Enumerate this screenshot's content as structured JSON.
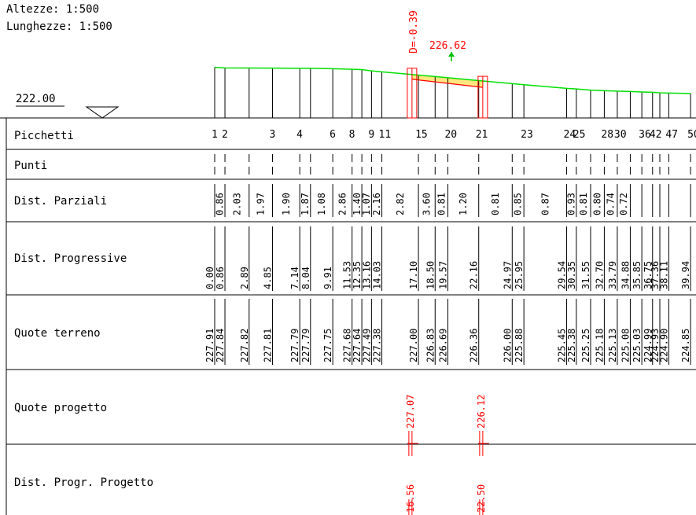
{
  "header": {
    "scale_heights": "Altezze:  1:500",
    "scale_lengths": "Lunghezze: 1:500",
    "datum": "222.00"
  },
  "design": {
    "d_label": "D=-0.39",
    "top_label": "226.62",
    "color": "#ff0000"
  },
  "colors": {
    "ground_line": "#00e000",
    "fill": "#ffe680",
    "lines": "#000000"
  },
  "rows": [
    "Picchetti",
    "Punti",
    "Dist. Parziali",
    "Dist. Progressive",
    "Quote terreno",
    "Quote progetto",
    "Dist. Progr. Progetto"
  ],
  "stations": [
    {
      "prog": "0.00",
      "quota": "227.91"
    },
    {
      "prog": "0.86",
      "quota": "227.84"
    },
    {
      "prog": "2.89",
      "quota": "227.82"
    },
    {
      "prog": "4.85",
      "quota": "227.81"
    },
    {
      "prog": "7.14",
      "quota": "227.79"
    },
    {
      "prog": "8.04",
      "quota": "227.79"
    },
    {
      "prog": "9.91",
      "quota": "227.75"
    },
    {
      "prog": "11.53",
      "quota": "227.68"
    },
    {
      "prog": "12.35",
      "quota": "227.64"
    },
    {
      "prog": "13.16",
      "quota": "227.49"
    },
    {
      "prog": "14.03",
      "quota": "227.38"
    },
    {
      "prog": "17.10",
      "quota": "227.00"
    },
    {
      "prog": "18.50",
      "quota": "226.83"
    },
    {
      "prog": "19.57",
      "quota": "226.69"
    },
    {
      "prog": "22.16",
      "quota": "226.36"
    },
    {
      "prog": "24.97",
      "quota": "226.00"
    },
    {
      "prog": "25.95",
      "quota": "225.88"
    },
    {
      "prog": "29.54",
      "quota": "225.45"
    },
    {
      "prog": "30.35",
      "quota": "225.38"
    },
    {
      "prog": "31.55",
      "quota": "225.25"
    },
    {
      "prog": "32.70",
      "quota": "225.18"
    },
    {
      "prog": "33.79",
      "quota": "225.13"
    },
    {
      "prog": "34.88",
      "quota": "225.08"
    },
    {
      "prog": "35.85",
      "quota": "225.03"
    },
    {
      "prog": "36.75",
      "quota": "224.99"
    },
    {
      "prog": "37.36",
      "quota": "224.93"
    },
    {
      "prog": "38.11",
      "quota": "224.90"
    },
    {
      "prog": "39.94",
      "quota": "224.85"
    }
  ],
  "picchetti_labels": [
    "1",
    "2",
    "3",
    "4",
    "6",
    "8",
    "9",
    "11",
    "15",
    "20",
    "21",
    "23",
    "24",
    "25",
    "28",
    "30",
    "36",
    "42",
    "47",
    "50"
  ],
  "parziali": [
    "0.86",
    "2.03",
    "1.97",
    "1.90",
    "1.87",
    "1.08",
    "2.86",
    "1.40",
    "1.07",
    "2.16",
    "2.82",
    "3.60",
    "0.81",
    "1.20",
    "0.81",
    "0.85",
    "0.87",
    "0.93",
    "0.81",
    "0.80",
    "0.74",
    "0.72"
  ],
  "progetto": [
    {
      "quota": "227.07",
      "prog": "16.56"
    },
    {
      "quota": "226.12",
      "prog": "22.50"
    }
  ]
}
